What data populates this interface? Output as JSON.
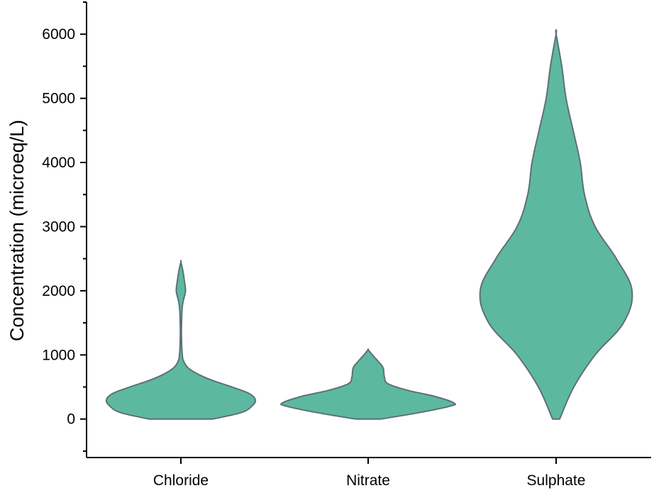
{
  "chart_data": {
    "type": "violin",
    "title": "",
    "xlabel": "",
    "ylabel": "Concentration (microeq/L)",
    "ylim": [
      -600,
      6500
    ],
    "yticks": [
      0,
      1000,
      2000,
      3000,
      4000,
      5000,
      6000
    ],
    "yticks_minor": [
      -500,
      500,
      1500,
      2500,
      3500,
      4500,
      5500,
      6500
    ],
    "grid": false,
    "legend": "none",
    "categories": [
      "Chloride",
      "Nitrate",
      "Sulphate"
    ],
    "fill_color": "#5cb9a0",
    "stroke_color": "#5f6f78",
    "series": [
      {
        "category": "Chloride",
        "min": 0,
        "max": 2450,
        "density_profile": [
          {
            "y": 0,
            "half_width": 45
          },
          {
            "y": 100,
            "half_width": 85
          },
          {
            "y": 200,
            "half_width": 100
          },
          {
            "y": 300,
            "half_width": 105
          },
          {
            "y": 400,
            "half_width": 96
          },
          {
            "y": 500,
            "half_width": 72
          },
          {
            "y": 600,
            "half_width": 45
          },
          {
            "y": 700,
            "half_width": 24
          },
          {
            "y": 800,
            "half_width": 10
          },
          {
            "y": 900,
            "half_width": 4
          },
          {
            "y": 1000,
            "half_width": 2
          },
          {
            "y": 1300,
            "half_width": 0.8
          },
          {
            "y": 1600,
            "half_width": 1.2
          },
          {
            "y": 1750,
            "half_width": 2
          },
          {
            "y": 1850,
            "half_width": 3.5
          },
          {
            "y": 2000,
            "half_width": 6.5
          },
          {
            "y": 2150,
            "half_width": 5
          },
          {
            "y": 2300,
            "half_width": 3
          },
          {
            "y": 2450,
            "half_width": 0
          }
        ]
      },
      {
        "category": "Nitrate",
        "min": 0,
        "max": 1080,
        "density_profile": [
          {
            "y": 0,
            "half_width": 18
          },
          {
            "y": 100,
            "half_width": 72
          },
          {
            "y": 200,
            "half_width": 115
          },
          {
            "y": 250,
            "half_width": 121
          },
          {
            "y": 350,
            "half_width": 95
          },
          {
            "y": 450,
            "half_width": 55
          },
          {
            "y": 550,
            "half_width": 28
          },
          {
            "y": 650,
            "half_width": 23
          },
          {
            "y": 800,
            "half_width": 21
          },
          {
            "y": 900,
            "half_width": 14
          },
          {
            "y": 1000,
            "half_width": 6
          },
          {
            "y": 1080,
            "half_width": 0
          }
        ]
      },
      {
        "category": "Sulphate",
        "min": 0,
        "max": 6000,
        "density_profile": [
          {
            "y": 0,
            "half_width": 5
          },
          {
            "y": 500,
            "half_width": 25
          },
          {
            "y": 1000,
            "half_width": 55
          },
          {
            "y": 1500,
            "half_width": 95
          },
          {
            "y": 2000,
            "half_width": 107
          },
          {
            "y": 2500,
            "half_width": 85
          },
          {
            "y": 3000,
            "half_width": 55
          },
          {
            "y": 3500,
            "half_width": 40
          },
          {
            "y": 4000,
            "half_width": 34
          },
          {
            "y": 4500,
            "half_width": 24
          },
          {
            "y": 5000,
            "half_width": 14
          },
          {
            "y": 5500,
            "half_width": 8
          },
          {
            "y": 6000,
            "half_width": 0
          }
        ]
      }
    ]
  }
}
